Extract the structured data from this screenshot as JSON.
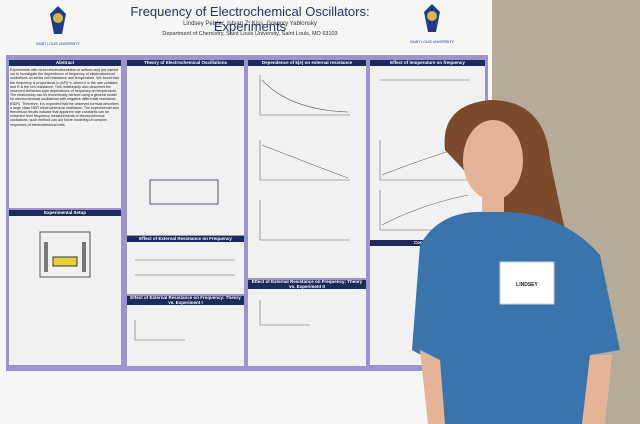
{
  "poster": {
    "title": "Frequency of Electrochemical Oscillators: Experiments",
    "authors": "Lindsey Pelster, Istvan Z. Kiss, Gregory Yablonsky",
    "affiliation": "Department of Chemistry, Saint Louis University, Saint Louis, MO 63103",
    "logo_left": "SAINT LOUIS UNIVERSITY",
    "logo_right": "SAINT LOUIS UNIVERSITY",
    "sections": {
      "abstract": {
        "header": "Abstract",
        "text": "Experiments with nickel electrodissolution in sulfuric acid are carried out to investigate the dependence of frequency of electrochemical oscillations on series cell resistance and temperature. We found that the frequency is proportional to (k/R)^x, where k is the rate constant and R is the cell resistance. This relationship also describes the observed Arrhenius-type dependence of frequency on temperature. The relationship can be theoretically derived using a general model for electrochemical oscillations with negative differential resistance (NDR). Therefore, it is expected that the observed formula describes a large class NDR electrochemical oscillators. The experimental and theoretical results indicate that apparent rate constants can be extracted from frequency measurements of electrochemical oscillations; such method can aid future modeling of complex responses of electrochemical cells."
      },
      "setup": {
        "header": "Experimental Setup"
      },
      "theory": {
        "header": "Theory of Electrochemical Oscillations"
      },
      "resistance": {
        "header": "Effect of External Resistance on Frequency"
      },
      "theory_exp_1": {
        "header": "Effect of External Resistance on Frequency: Theory vs. Experiment I"
      },
      "dependence": {
        "header": "Dependence of k(e) on external resistance"
      },
      "theory_exp_2": {
        "header": "Effect of External Resistance on Frequency: Theory vs. Experiment II"
      },
      "temperature": {
        "header": "Effect of temperature on frequency"
      },
      "conclusions": {
        "header": "Conclusions"
      }
    },
    "name_tag": "LINDSEY"
  }
}
